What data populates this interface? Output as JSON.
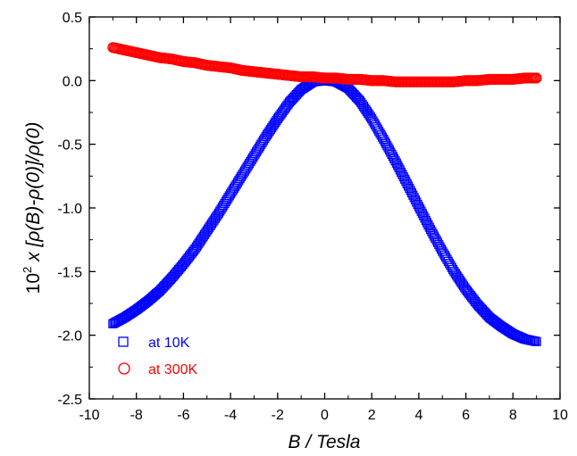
{
  "chart_data": {
    "type": "scatter",
    "title": "",
    "xlabel": "B / Tesla",
    "ylabel_prefix": "10",
    "ylabel_exp": "2",
    "ylabel_rest": " x [ρ(B)-ρ(0)]/ρ(0)",
    "xlim": [
      -10,
      10
    ],
    "ylim": [
      -2.5,
      0.5
    ],
    "x_ticks": [
      -10,
      -8,
      -6,
      -4,
      -2,
      0,
      2,
      4,
      6,
      8,
      10
    ],
    "x_tick_labels": [
      "-10",
      "-8",
      "-6",
      "-4",
      "-2",
      "0",
      "2",
      "4",
      "6",
      "8",
      "10"
    ],
    "y_ticks": [
      0.5,
      0.0,
      -0.5,
      -1.0,
      -1.5,
      -2.0,
      -2.5
    ],
    "y_tick_labels": [
      "0.5",
      "0.0",
      "-0.5",
      "-1.0",
      "-1.5",
      "-2.0",
      "-2.5"
    ],
    "grid": false,
    "legend_position": "bottom-left",
    "series": [
      {
        "name": "at 10K",
        "marker": "square",
        "color": "#0000ff",
        "x": [
          -9.0,
          -8.5,
          -8.0,
          -7.5,
          -7.0,
          -6.5,
          -6.0,
          -5.5,
          -5.0,
          -4.5,
          -4.0,
          -3.5,
          -3.0,
          -2.5,
          -2.0,
          -1.5,
          -1.0,
          -0.5,
          0.0,
          0.5,
          1.0,
          1.5,
          2.0,
          2.5,
          3.0,
          3.5,
          4.0,
          4.5,
          5.0,
          5.5,
          6.0,
          6.5,
          7.0,
          7.5,
          8.0,
          8.5,
          9.0
        ],
        "y": [
          -1.91,
          -1.86,
          -1.8,
          -1.73,
          -1.65,
          -1.55,
          -1.44,
          -1.32,
          -1.18,
          -1.04,
          -0.89,
          -0.74,
          -0.59,
          -0.44,
          -0.3,
          -0.17,
          -0.07,
          -0.01,
          0.0,
          -0.01,
          -0.06,
          -0.16,
          -0.3,
          -0.46,
          -0.63,
          -0.81,
          -0.99,
          -1.17,
          -1.34,
          -1.5,
          -1.64,
          -1.76,
          -1.86,
          -1.93,
          -1.99,
          -2.03,
          -2.05
        ]
      },
      {
        "name": "at 300K",
        "marker": "circle",
        "color": "#ff0000",
        "x": [
          -9.0,
          -8.5,
          -8.0,
          -7.5,
          -7.0,
          -6.5,
          -6.0,
          -5.5,
          -5.0,
          -4.5,
          -4.0,
          -3.5,
          -3.0,
          -2.5,
          -2.0,
          -1.5,
          -1.0,
          -0.5,
          0.0,
          0.5,
          1.0,
          1.5,
          2.0,
          2.5,
          3.0,
          3.5,
          4.0,
          4.5,
          5.0,
          5.5,
          6.0,
          6.5,
          7.0,
          7.5,
          8.0,
          8.5,
          9.0
        ],
        "y": [
          0.26,
          0.24,
          0.22,
          0.2,
          0.18,
          0.17,
          0.15,
          0.14,
          0.12,
          0.11,
          0.1,
          0.08,
          0.07,
          0.06,
          0.05,
          0.04,
          0.03,
          0.03,
          0.02,
          0.02,
          0.01,
          0.01,
          0.0,
          0.0,
          -0.01,
          -0.01,
          -0.01,
          -0.01,
          -0.01,
          -0.01,
          0.0,
          0.0,
          0.01,
          0.01,
          0.01,
          0.02,
          0.02
        ]
      }
    ]
  }
}
